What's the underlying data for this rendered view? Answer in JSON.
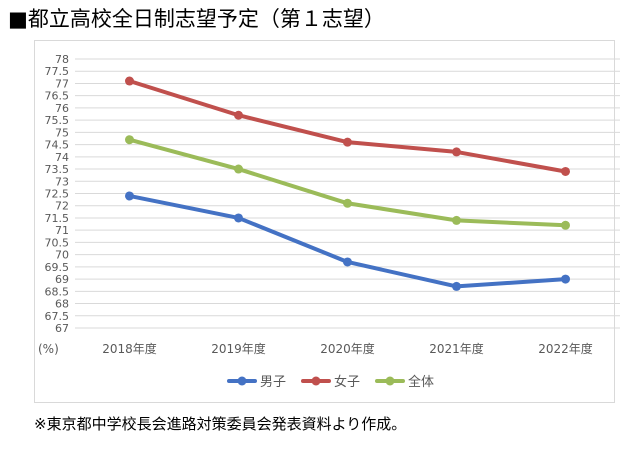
{
  "page": {
    "title": "■都立高校全日制志望予定（第１志望）",
    "footnote": "※東京都中学校長会進路対策委員会発表資料より作成。"
  },
  "chart_data": {
    "type": "line",
    "title": "都立高校全日制志望予定（第１志望）",
    "x": [
      "2018年度",
      "2019年度",
      "2020年度",
      "2021年度",
      "2022年度"
    ],
    "ylabel": "(%)",
    "ylim": [
      67,
      78
    ],
    "ytick_step": 0.5,
    "yticks": [
      "67",
      "67.5",
      "68",
      "68.5",
      "69",
      "69.5",
      "70",
      "70.5",
      "71",
      "71.5",
      "72",
      "72.5",
      "73",
      "73.5",
      "74",
      "74.5",
      "75",
      "75.5",
      "76",
      "76.5",
      "77",
      "77.5",
      "78"
    ],
    "grid": true,
    "legend_position": "bottom",
    "series": [
      {
        "name": "男子",
        "color": "#4472c4",
        "values": [
          72.4,
          71.5,
          69.7,
          68.7,
          69.0
        ]
      },
      {
        "name": "女子",
        "color": "#c0504d",
        "values": [
          77.1,
          75.7,
          74.6,
          74.2,
          73.4
        ]
      },
      {
        "name": "全体",
        "color": "#9bbb59",
        "values": [
          74.7,
          73.5,
          72.1,
          71.4,
          71.2
        ]
      }
    ]
  }
}
